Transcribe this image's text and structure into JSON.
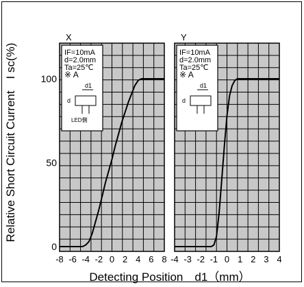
{
  "chart_data": [
    {
      "type": "line",
      "panel_label": "X",
      "xlabel": "Detecting Position　d1（mm）",
      "ylabel": "Relative Short Circuit Current　I sc(%)",
      "xlim": [
        -8,
        8
      ],
      "ylim": [
        0,
        100
      ],
      "x_ticks": [
        "-8",
        "-6",
        "-4",
        "-2",
        "0",
        "2",
        "4",
        "6",
        "8"
      ],
      "y_ticks": [
        "0",
        "50",
        "100"
      ],
      "grid": true,
      "conditions": [
        "IF=10mA",
        "d=2.0mm",
        "Ta=25℃",
        "※ A"
      ],
      "inset_labels": [
        "d1",
        "d",
        "LED側"
      ],
      "x": [
        -8,
        -4.5,
        -4,
        -3.5,
        -3,
        -2.5,
        -2,
        -1.5,
        -1,
        -0.5,
        0,
        0.5,
        1,
        1.5,
        2,
        2.5,
        3,
        3.5,
        4,
        4.5,
        5,
        6,
        8
      ],
      "y": [
        0,
        0,
        1,
        3,
        8,
        15,
        22,
        30,
        38,
        45,
        52,
        60,
        67,
        74,
        80,
        86,
        91,
        96,
        99,
        100,
        100,
        100,
        100
      ]
    },
    {
      "type": "line",
      "panel_label": "Y",
      "xlim": [
        -4,
        4
      ],
      "ylim": [
        0,
        100
      ],
      "x_ticks": [
        "-4",
        "-3",
        "-2",
        "-1",
        "0",
        "1",
        "2",
        "3",
        "4"
      ],
      "grid": true,
      "conditions": [
        "IF=10mA",
        "d=2.0mm",
        "Ta=25℃",
        "※ A"
      ],
      "inset_labels": [
        "d1",
        "d"
      ],
      "x": [
        -4,
        -1.2,
        -1,
        -0.8,
        -0.6,
        -0.4,
        -0.2,
        0,
        0.2,
        0.4,
        0.6,
        0.8,
        1,
        1.5,
        4
      ],
      "y": [
        0,
        0,
        1,
        6,
        20,
        40,
        60,
        78,
        90,
        96,
        99,
        100,
        100,
        100,
        100
      ]
    }
  ],
  "colors": {
    "grid_bg": "#c8c8c8",
    "grid_line": "#000000",
    "curve": "#000000",
    "box_bg": "#ffffff"
  }
}
